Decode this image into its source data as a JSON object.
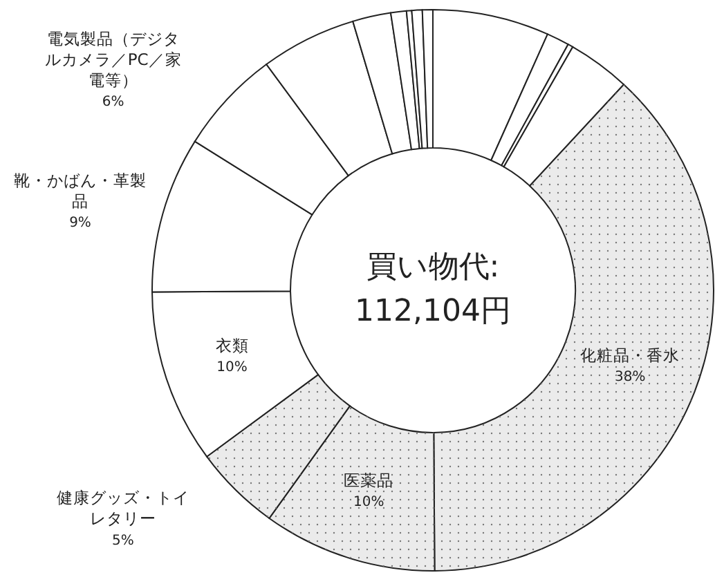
{
  "chart_data": {
    "type": "donut",
    "title": "買い物代:",
    "subtitle": "112,104円",
    "categories": [
      null,
      null,
      null,
      null,
      "化粧品・香水",
      "医薬品",
      "健康グッズ・トイレタリー",
      "衣類",
      "靴・かばん・革製品",
      "電気製品（デジタルカメラ／PC／家電等）",
      null,
      null,
      null,
      null,
      null,
      null
    ],
    "values": [
      6.7,
      1.3,
      0.3,
      3.6,
      38,
      10,
      5,
      10,
      9,
      6,
      5.5,
      2.2,
      0.9,
      0.3,
      0.6,
      0.6
    ],
    "value_labels": [
      null,
      null,
      null,
      null,
      "38%",
      "10%",
      "5%",
      "10%",
      "9%",
      "6%",
      null,
      null,
      null,
      null,
      null,
      null
    ],
    "colors": [
      "#ffffff",
      "#ffffff",
      "#ffffff",
      "#ffffff",
      "#ebebeb",
      "#ebebeb",
      "#ebebeb",
      "#ffffff",
      "#ffffff",
      "#ffffff",
      "#ffffff",
      "#ffffff",
      "#ffffff",
      "#ffffff",
      "#ffffff",
      "#ffffff"
    ]
  }
}
